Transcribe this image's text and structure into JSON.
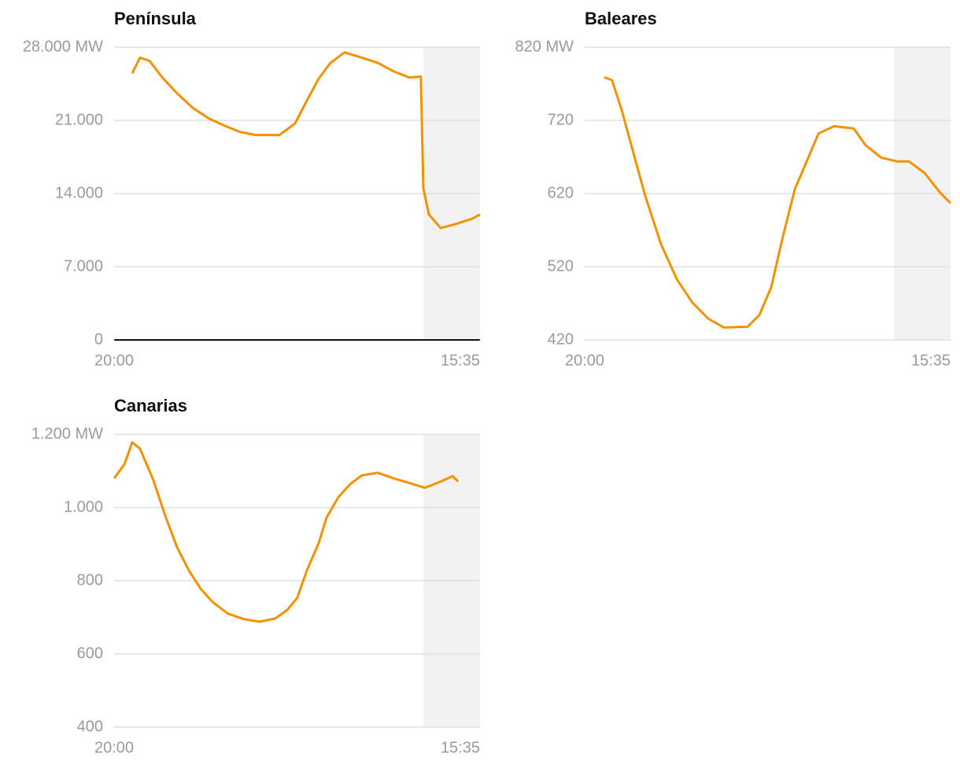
{
  "chart_data": [
    {
      "type": "line",
      "title": "Península",
      "color": "#f39200",
      "grid": true,
      "x": [
        58,
        83,
        114,
        152,
        202,
        253,
        303,
        354,
        404,
        455,
        531,
        581,
        619,
        657,
        695,
        740,
        796,
        847,
        897,
        948,
        985,
        993,
        1011,
        1049,
        1099,
        1150,
        1175
      ],
      "values": [
        25500,
        27000,
        26700,
        25200,
        23600,
        22200,
        21200,
        20500,
        19900,
        19600,
        19600,
        20700,
        22900,
        25000,
        26500,
        27500,
        27000,
        26500,
        25700,
        25100,
        25200,
        14500,
        12000,
        10700,
        11100,
        11600,
        12000
      ],
      "xlim": [
        0,
        1175
      ],
      "xticks": [
        {
          "value": 0,
          "label": "20:00"
        },
        {
          "value": 1175,
          "label": "15:35"
        }
      ],
      "ylim": [
        0,
        28000
      ],
      "yticks": [
        0,
        {
          "value": 7000,
          "label": "7.000"
        },
        {
          "value": 14000,
          "label": "14.000"
        },
        {
          "value": 21000,
          "label": "21.000"
        },
        {
          "value": 28000,
          "label": "28.000 MW"
        }
      ],
      "shaded_x": [
        993,
        1175
      ]
    },
    {
      "type": "line",
      "title": "Baleares",
      "color": "#f39200",
      "grid": true,
      "x": [
        63,
        88,
        119,
        157,
        195,
        245,
        296,
        346,
        397,
        447,
        523,
        561,
        599,
        637,
        675,
        713,
        751,
        801,
        864,
        902,
        953,
        1003,
        1041,
        1092,
        1142,
        1175
      ],
      "values": [
        779,
        775,
        734,
        675,
        616,
        551,
        503,
        471,
        449,
        437,
        438,
        454,
        492,
        562,
        626,
        664,
        702,
        712,
        709,
        686,
        669,
        664,
        664,
        648,
        621,
        607
      ],
      "xlim": [
        0,
        1175
      ],
      "xticks": [
        {
          "value": 0,
          "label": "20:00"
        },
        {
          "value": 1175,
          "label": "15:35"
        }
      ],
      "ylim": [
        420,
        820
      ],
      "yticks": [
        420,
        520,
        620,
        720,
        {
          "value": 820,
          "label": "820 MW"
        }
      ],
      "shaded_x": [
        993,
        1175
      ]
    },
    {
      "type": "line",
      "title": "Canarias",
      "color": "#f39200",
      "grid": true,
      "x": [
        0,
        33,
        58,
        83,
        126,
        164,
        202,
        240,
        278,
        316,
        366,
        417,
        467,
        518,
        556,
        588,
        619,
        657,
        682,
        720,
        758,
        796,
        847,
        897,
        948,
        998,
        1049,
        1087,
        1105
      ],
      "values": [
        1080,
        1118,
        1178,
        1161,
        1075,
        978,
        892,
        828,
        778,
        742,
        710,
        695,
        688,
        697,
        720,
        753,
        828,
        903,
        972,
        1028,
        1064,
        1088,
        1095,
        1080,
        1067,
        1054,
        1071,
        1086,
        1071
      ],
      "xlim": [
        0,
        1175
      ],
      "xticks": [
        {
          "value": 0,
          "label": "20:00"
        },
        {
          "value": 1175,
          "label": "15:35"
        }
      ],
      "ylim": [
        400,
        1200
      ],
      "yticks": [
        400,
        600,
        800,
        {
          "value": 1000,
          "label": "1.000"
        },
        {
          "value": 1200,
          "label": "1.200 MW"
        }
      ],
      "shaded_x": [
        993,
        1175
      ]
    }
  ]
}
